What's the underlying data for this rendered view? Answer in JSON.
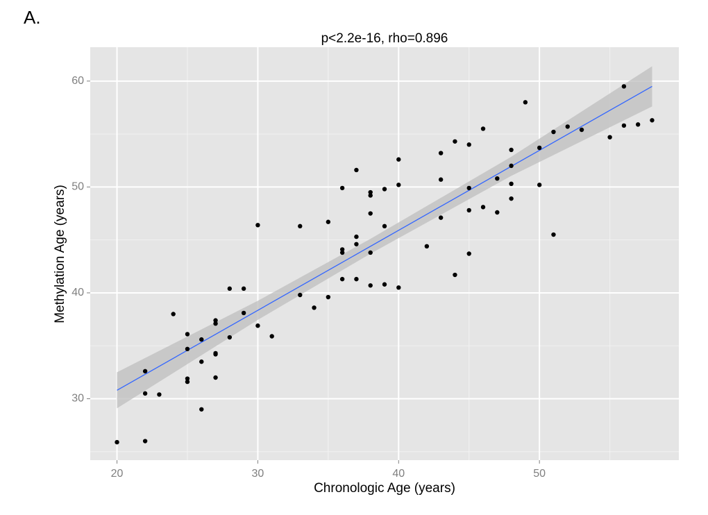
{
  "panel_label": "A.",
  "chart_data": {
    "type": "scatter",
    "title": "p<2.2e-16, rho=0.896",
    "x_label": "Chronologic Age (years)",
    "y_label": "Methylation Age (years)",
    "xlim": [
      18.1,
      59.9
    ],
    "ylim": [
      24.2,
      63.2
    ],
    "xticks": [
      20,
      30,
      40,
      50
    ],
    "yticks": [
      30,
      40,
      50,
      60
    ],
    "minor_xticks": [
      25,
      35,
      45,
      55
    ],
    "minor_yticks": [
      25,
      35,
      45,
      55
    ],
    "grid": true,
    "color": "#000000",
    "background": "#e5e5e5",
    "x": [
      20,
      22,
      22,
      22,
      23,
      24,
      25,
      25,
      25,
      25,
      26,
      26,
      26,
      27,
      27,
      27,
      27,
      27,
      28,
      28,
      29,
      29,
      30,
      30,
      31,
      33,
      33,
      34,
      35,
      35,
      36,
      36,
      36,
      36,
      37,
      37,
      37,
      37,
      38,
      38,
      38,
      38,
      38,
      39,
      39,
      39,
      40,
      40,
      40,
      42,
      43,
      43,
      43,
      44,
      44,
      45,
      45,
      45,
      45,
      46,
      46,
      47,
      47,
      48,
      48,
      48,
      48,
      49,
      50,
      50,
      51,
      51,
      52,
      53,
      55,
      56,
      56,
      57,
      58
    ],
    "values": [
      25.9,
      32.6,
      30.5,
      26.0,
      30.4,
      38.0,
      36.1,
      34.7,
      31.9,
      31.6,
      35.6,
      33.5,
      29.0,
      37.4,
      37.1,
      34.3,
      34.2,
      32.0,
      40.4,
      35.8,
      40.4,
      38.1,
      46.4,
      36.9,
      35.9,
      46.3,
      39.8,
      38.6,
      46.7,
      39.6,
      49.9,
      44.1,
      43.8,
      41.3,
      51.6,
      45.3,
      44.6,
      41.3,
      49.5,
      49.2,
      47.5,
      43.8,
      40.7,
      49.8,
      46.3,
      40.8,
      52.6,
      50.2,
      40.5,
      44.4,
      53.2,
      50.7,
      47.1,
      54.3,
      41.7,
      54.0,
      49.9,
      47.8,
      43.7,
      55.5,
      48.1,
      50.8,
      47.6,
      53.5,
      52.0,
      50.3,
      48.9,
      58.0,
      53.7,
      50.2,
      55.2,
      45.5,
      55.7,
      55.4,
      54.7,
      59.5,
      55.8,
      55.9,
      56.3
    ],
    "fit": {
      "color": "#3366ff",
      "x": [
        20,
        58
      ],
      "values": [
        30.8,
        59.5
      ]
    },
    "band": {
      "color": "#bdbdbd",
      "x": [
        20,
        30,
        38,
        48,
        58
      ],
      "lower": [
        29.1,
        37.45,
        43.7,
        51.05,
        57.6
      ],
      "upper": [
        32.5,
        39.25,
        45.1,
        52.85,
        61.4
      ]
    }
  }
}
